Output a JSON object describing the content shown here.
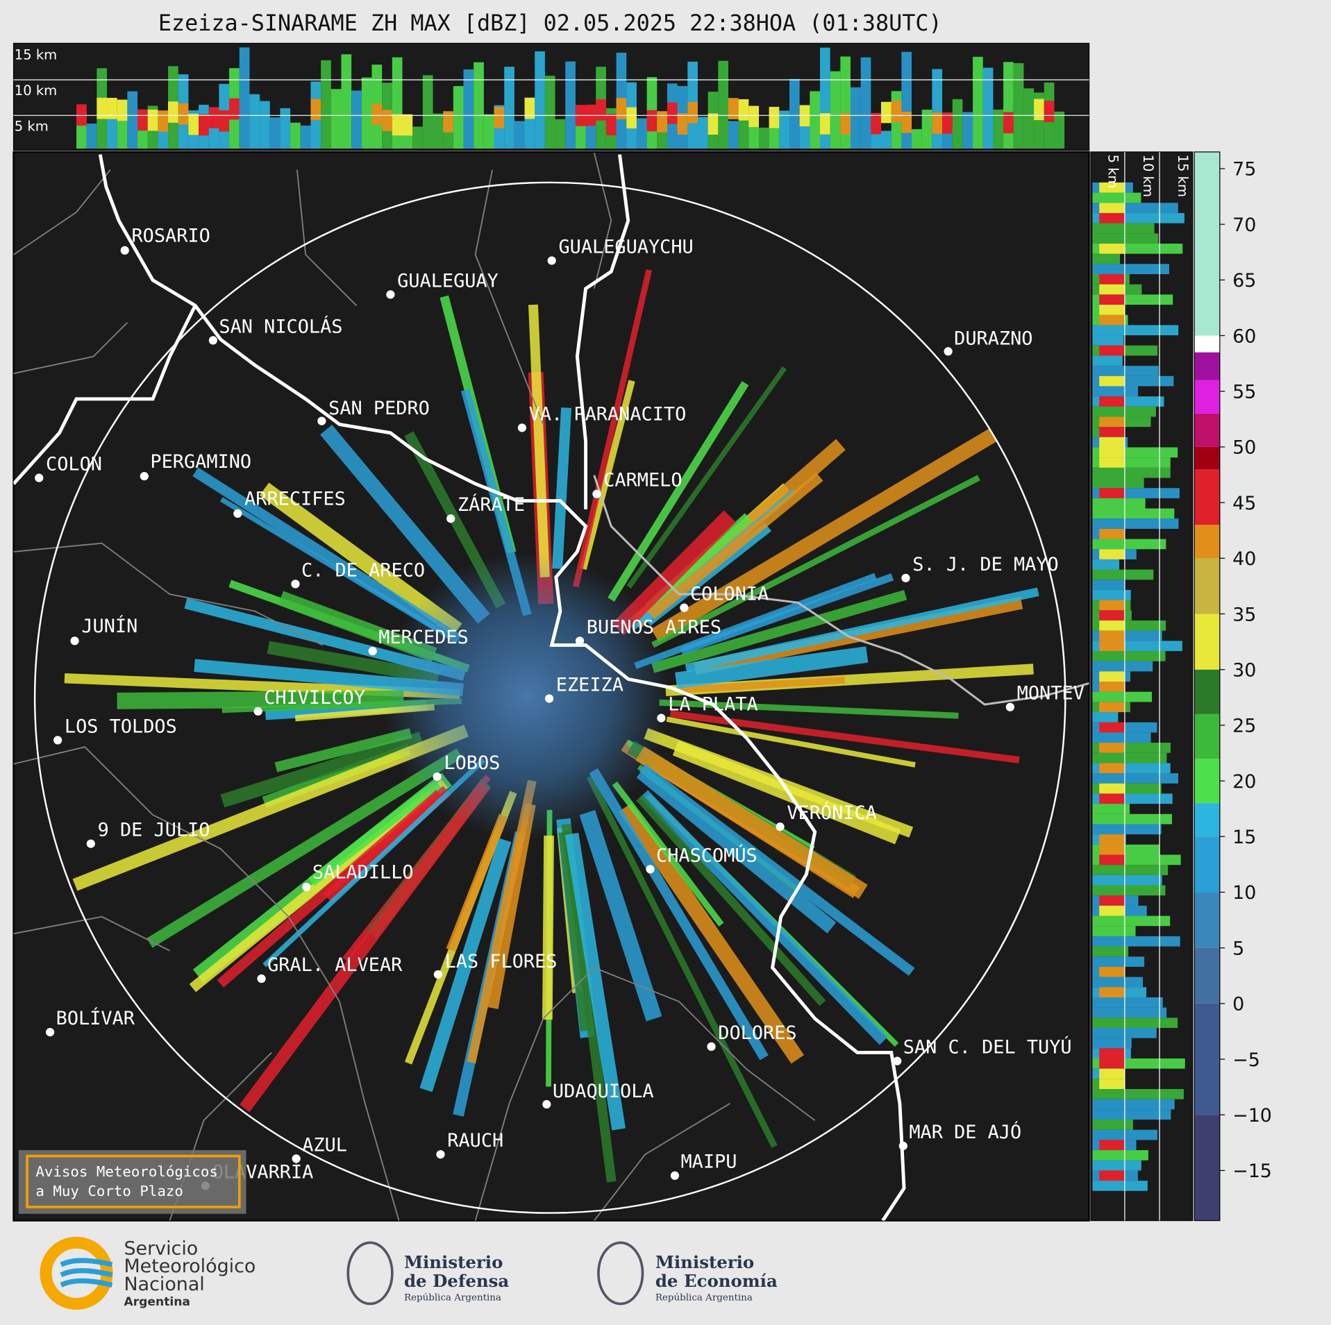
{
  "title": "Ezeiza-SINARAME ZH MAX [dBZ] 02.05.2025 22:38HOA (01:38UTC)",
  "top_panel_labels": [
    "15 km",
    "10 km",
    "5 km"
  ],
  "side_panel_labels": [
    "5 km",
    "10 km",
    "15 km"
  ],
  "cities": [
    "ROSARIO",
    "GUALEGUAYCHU",
    "GUALEGUAY",
    "SAN NICOLÁS",
    "DURAZNO",
    "SAN PEDRO",
    "VA. PARANACITO",
    "COLON",
    "PERGAMINO",
    "CARMELO",
    "ARRECIFES",
    "ZÁRATE",
    "C. DE ARECO",
    "S. J. DE MAYO",
    "COLONIA",
    "BUENOS AIRES",
    "JUNÍN",
    "MERCEDES",
    "EZEIZA",
    "MONTEV",
    "LA PLATA",
    "CHIVILCOY",
    "LOS TOLDOS",
    "LOBOS",
    "VERÓNICA",
    "9 DE JULIO",
    "CHASCOMÚS",
    "SALADILLO",
    "GRAL. ALVEAR",
    "LAS FLORES",
    "BOLÍVAR",
    "DOLORES",
    "SAN C. DEL TUYÚ",
    "UDAQUIOLA",
    "MAR DE AJÓ",
    "RAUCH",
    "AZUL",
    "OLAVARRÍA",
    "MAIPU"
  ],
  "warning_box": [
    "Avisos Meteorológicos",
    "a Muy Corto Plazo"
  ],
  "colorbar": {
    "lim": [
      -19.5,
      76.5
    ],
    "bounds": [
      -19.5,
      -10,
      0,
      5,
      10,
      15,
      18,
      22,
      26,
      30,
      35,
      40,
      43,
      48,
      50,
      53,
      56,
      58.5,
      60,
      76.5
    ],
    "colors": [
      "#3d3f6e",
      "#3f5a8e",
      "#4270a0",
      "#3a88bb",
      "#2ba0d8",
      "#2cb5e0",
      "#4ee04a",
      "#3cb83a",
      "#2a7a2a",
      "#e8e83a",
      "#c8b440",
      "#e0901a",
      "#e0202a",
      "#a00012",
      "#c0106a",
      "#e020e0",
      "#a010a0",
      "#ffffff",
      "#a8e8d0"
    ],
    "ticks": [
      {
        "value": -15,
        "label": "−15"
      },
      {
        "value": -10,
        "label": "−10"
      },
      {
        "value": -5,
        "label": "−5"
      },
      0,
      5,
      10,
      15,
      20,
      25,
      30,
      35,
      40,
      45,
      50,
      55,
      60,
      65,
      70,
      75
    ]
  },
  "footer": {
    "smn": [
      "Servicio",
      "Meteorológico",
      "Nacional",
      "Argentina"
    ],
    "defensa": [
      "Ministerio",
      "de Defensa",
      "República Argentina"
    ],
    "economia": [
      "Ministerio",
      "de Economía",
      "República Argentina"
    ]
  }
}
